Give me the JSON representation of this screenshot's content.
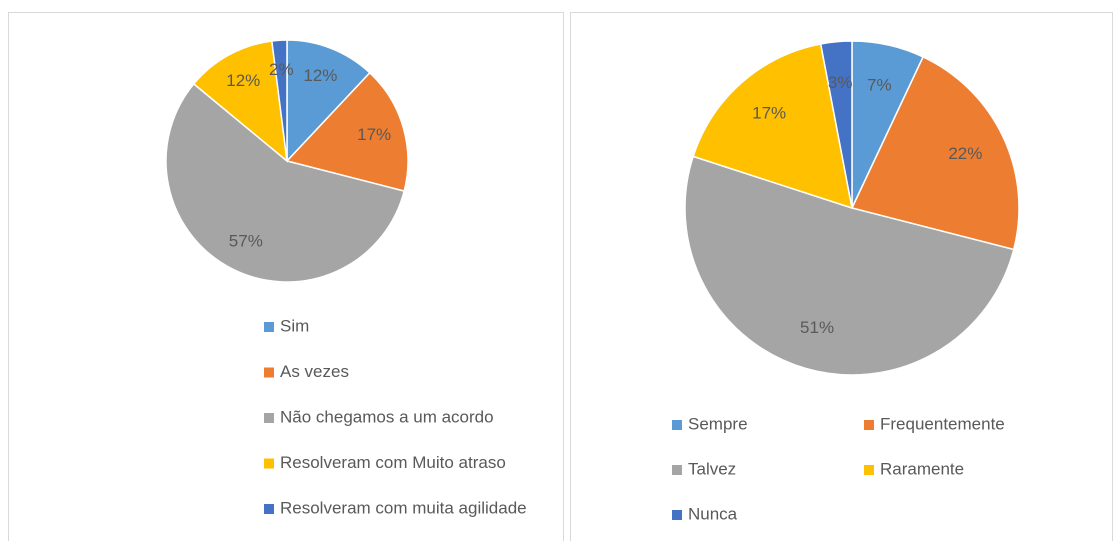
{
  "chart_data": [
    {
      "type": "pie",
      "categories": [
        "Sim",
        "As vezes",
        "Não chegamos a um acordo",
        "Resolveram com Muito atraso",
        "Resolveram com muita agilidade"
      ],
      "values": [
        12,
        17,
        57,
        12,
        2
      ],
      "value_labels": [
        "12%",
        "17%",
        "57%",
        "12%",
        "2%"
      ],
      "colors": [
        "#5b9bd5",
        "#ed7d31",
        "#a5a5a5",
        "#ffc000",
        "#4472c4"
      ],
      "legend": "bottom"
    },
    {
      "type": "pie",
      "categories": [
        "Sempre",
        "Frequentemente",
        "Talvez",
        "Raramente",
        "Nunca"
      ],
      "values": [
        7,
        22,
        51,
        17,
        3
      ],
      "value_labels": [
        "7%",
        "22%",
        "51%",
        "17%",
        "3%"
      ],
      "colors": [
        "#5b9bd5",
        "#ed7d31",
        "#a5a5a5",
        "#ffc000",
        "#4472c4"
      ],
      "legend": "bottom"
    }
  ]
}
